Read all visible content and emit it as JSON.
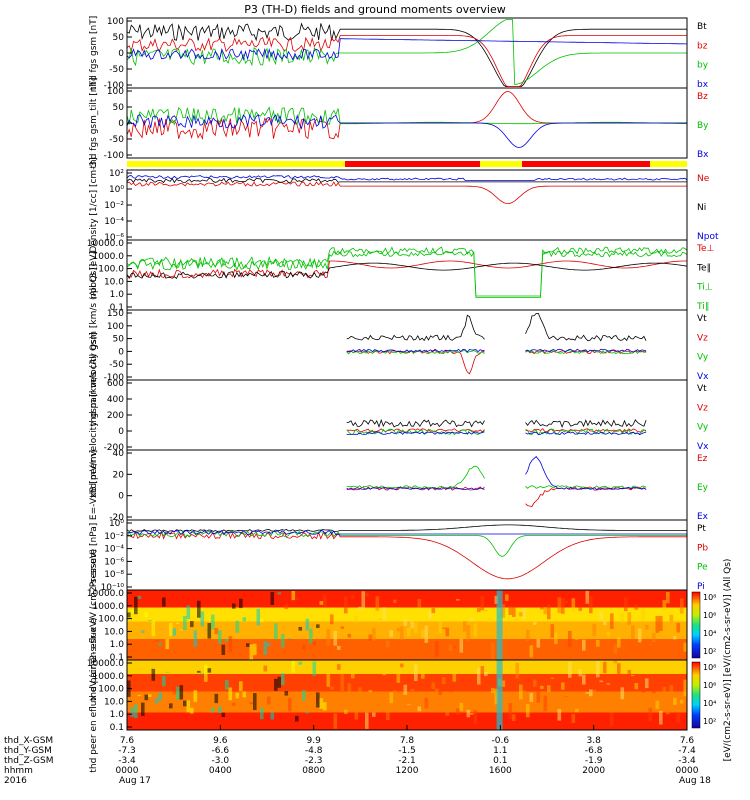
{
  "chart_data": {
    "type": "line",
    "title": "P3 (TH-D) fields and ground moments overview",
    "x_ticks": [
      "0000",
      "0400",
      "0800",
      "1200",
      "1600",
      "2000",
      "0000"
    ],
    "x_rows": [
      {
        "label": "thd_X-GSM",
        "values": [
          "7.6",
          "9.6",
          "9.9",
          "7.8",
          "-0.6",
          "3.8",
          "7.6"
        ]
      },
      {
        "label": "thd_Y-GSM",
        "values": [
          "-7.3",
          "-6.6",
          "-4.8",
          "-1.5",
          "1.1",
          "-6.8",
          "-7.4"
        ]
      },
      {
        "label": "thd_Z-GSM",
        "values": [
          "-3.4",
          "-3.0",
          "-2.3",
          "-2.1",
          "0.1",
          "-1.9",
          "-3.4"
        ]
      },
      {
        "label": "hhmm",
        "values": [
          "0000",
          "0400",
          "0800",
          "1200",
          "1600",
          "2000",
          "0000"
        ]
      }
    ],
    "date_left": "2016",
    "date_left2": "Aug 17",
    "date_right": "Aug 18",
    "panels": [
      {
        "ylabel": "thd fgs gsm [nT]",
        "ticks": [
          "100",
          "50",
          "0",
          "-50",
          "-100"
        ],
        "ylim": [
          -100,
          100
        ],
        "series": [
          {
            "name": "Bt",
            "color": "#000000"
          },
          {
            "name": "bz",
            "color": "#e00000"
          },
          {
            "name": "by",
            "color": "#00c000"
          },
          {
            "name": "bx",
            "color": "#0000e0"
          }
        ]
      },
      {
        "ylabel": "thd fgs gsm_tilt [nT]",
        "ticks": [
          "100",
          "50",
          "0",
          "-50",
          "-100"
        ],
        "ylim": [
          -120,
          100
        ],
        "series": [
          {
            "name": "Bz",
            "color": "#e00000"
          },
          {
            "name": "By",
            "color": "#00c000"
          },
          {
            "name": "Bx",
            "color": "#0000e0"
          }
        ]
      },
      {
        "ylabel": "Density [1/cc] [cm-3]",
        "ticks": [
          "10²",
          "10⁰",
          "10⁻²",
          "10⁻⁴",
          "10⁻⁶"
        ],
        "ylim": [
          -7,
          2.5
        ],
        "series": [
          {
            "name": "Ne",
            "color": "#e00000"
          },
          {
            "name": "Ni",
            "color": "#000000"
          },
          {
            "name": "Npot",
            "color": "#0000e0"
          }
        ]
      },
      {
        "ylabel": "npot3 [eV]",
        "ticks": [
          "10000.0",
          "1000.0",
          "100.0",
          "10.0",
          "1.0",
          "0.1"
        ],
        "ylim": [
          -1,
          4.3
        ],
        "series": [
          {
            "name": "Te⊥",
            "color": "#e00000"
          },
          {
            "name": "Te∥",
            "color": "#000000"
          },
          {
            "name": "Ti⊥",
            "color": "#00c000"
          },
          {
            "name": "Ti∥",
            "color": "#00c000"
          }
        ]
      },
      {
        "ylabel": "thd pair velocity gsm [km/s (All Qs)]",
        "ticks": [
          "150",
          "100",
          "50",
          "0",
          "-50",
          "-100"
        ],
        "ylim": [
          -100,
          150
        ],
        "series": [
          {
            "name": "Vt",
            "color": "#000000"
          },
          {
            "name": "Vz",
            "color": "#e00000"
          },
          {
            "name": "Vy",
            "color": "#00c000"
          },
          {
            "name": "Vx",
            "color": "#0000e0"
          }
        ]
      },
      {
        "ylabel": "thd peer velocity gsm [km/s (All Qs)]",
        "ticks": [
          "600",
          "400",
          "200",
          "0",
          "-200"
        ],
        "ylim": [
          -200,
          600
        ],
        "series": [
          {
            "name": "Vt",
            "color": "#000000"
          },
          {
            "name": "Vz",
            "color": "#e00000"
          },
          {
            "name": "Vy",
            "color": "#00c000"
          },
          {
            "name": "Vx",
            "color": "#0000e0"
          }
        ]
      },
      {
        "ylabel": "E=-VxB [mV/m]",
        "ticks": [
          "40",
          "20",
          "0",
          "-20"
        ],
        "ylim": [
          -20,
          40
        ],
        "series": [
          {
            "name": "Ez",
            "color": "#e00000"
          },
          {
            "name": "Ey",
            "color": "#00c000"
          },
          {
            "name": "Ex",
            "color": "#0000e0"
          }
        ]
      },
      {
        "ylabel": "Pressure [nPa]",
        "ticks": [
          "10⁰",
          "10⁻²",
          "10⁻⁴",
          "10⁻⁶",
          "10⁻⁸",
          "10⁻¹⁰"
        ],
        "ylim": [
          -10,
          1
        ],
        "series": [
          {
            "name": "Pt",
            "color": "#000000"
          },
          {
            "name": "Pb",
            "color": "#e00000"
          },
          {
            "name": "Pe",
            "color": "#00c000"
          },
          {
            "name": "Pi",
            "color": "#0000e0"
          }
        ]
      },
      {
        "ylabel": "thd pair en eflux eV (cm2-s-sr-eV)",
        "ticks": [
          "10000.0",
          "1000.0",
          "100.0",
          "10.0",
          "1.0",
          "0.1"
        ],
        "type": "spectrogram",
        "colorbar": [
          "10⁸",
          "10⁶",
          "10⁴",
          "10²"
        ]
      },
      {
        "ylabel": "thd peer en eflux eV (cm2-s-sr-eV)",
        "ticks": [
          "10000.0",
          "1000.0",
          "100.0",
          "10.0",
          "1.0",
          "0.1"
        ],
        "type": "spectrogram",
        "colorbar": [
          "10⁸",
          "10⁶",
          "10⁴",
          "10²"
        ]
      }
    ],
    "colorbar_unit": "[eV/(cm2-s-sr-eV)] [eV/(cm2-s-sr-eV)] (All Qs)"
  }
}
